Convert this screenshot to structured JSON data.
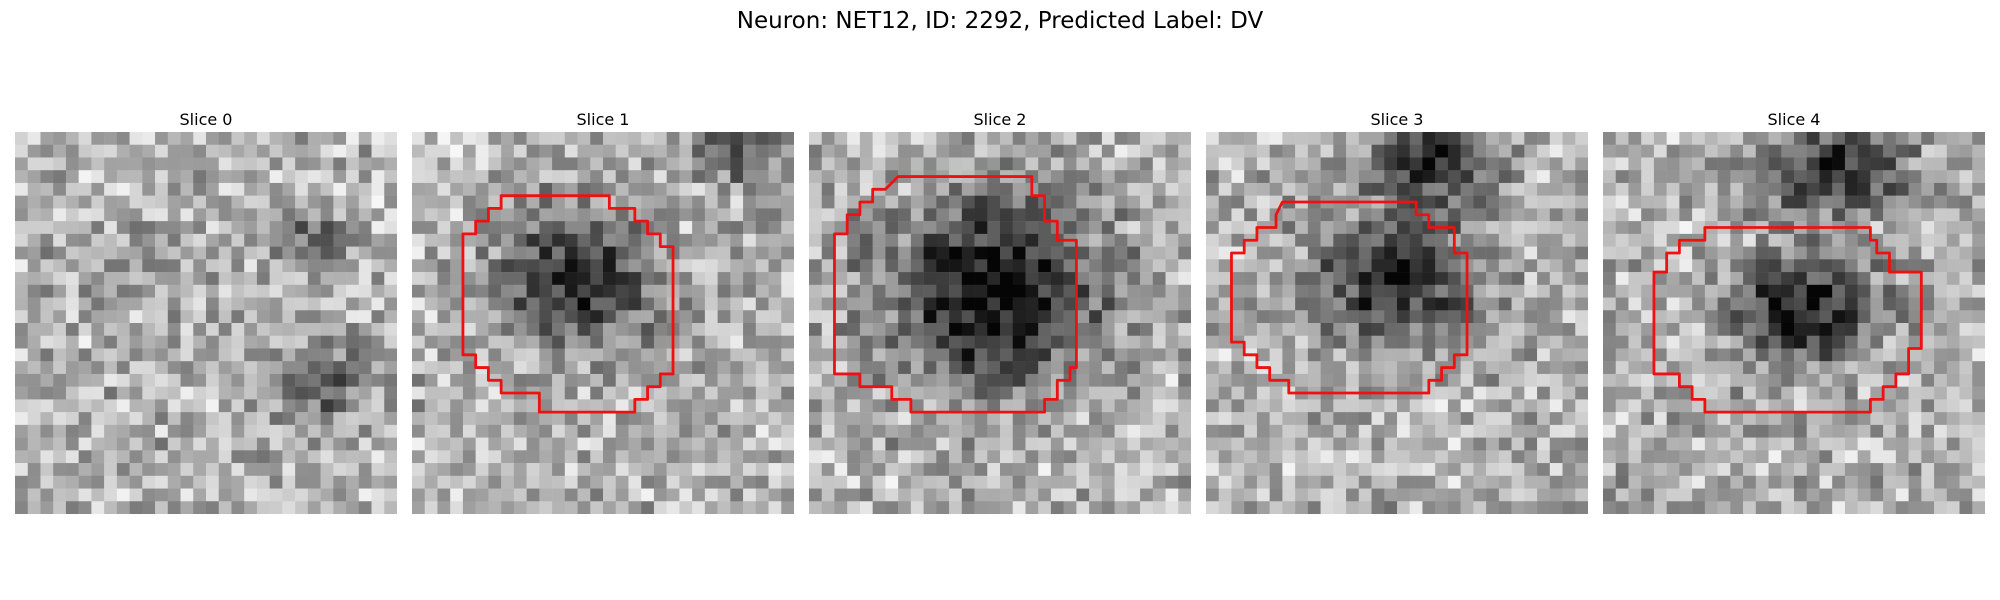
{
  "figure": {
    "title": "Neuron: NET12, ID: 2292, Predicted Label: DV"
  },
  "contour_color": "#ee1111",
  "panels": [
    {
      "title": "Slice 0",
      "image": "noisy grayscale patch, no cell body, no contour",
      "has_contour": false,
      "dark_regions": [
        [
          0.78,
          0.28,
          0.12,
          0.08,
          0.3
        ],
        [
          0.8,
          0.65,
          0.16,
          0.12,
          0.35
        ],
        [
          0.35,
          0.35,
          0.18,
          0.12,
          0.12
        ]
      ]
    },
    {
      "title": "Slice 1",
      "image": "grayscale patch with dark round cell body and red contour",
      "has_contour": true,
      "dark_regions": [
        [
          0.43,
          0.38,
          0.24,
          0.22,
          0.55
        ],
        [
          0.85,
          0.06,
          0.16,
          0.1,
          0.4
        ]
      ]
    },
    {
      "title": "Slice 2",
      "image": "grayscale patch with large dark cell body and red contour",
      "has_contour": true,
      "dark_regions": [
        [
          0.48,
          0.42,
          0.33,
          0.3,
          0.7
        ]
      ]
    },
    {
      "title": "Slice 3",
      "image": "grayscale patch with dark cell body and red contour",
      "has_contour": true,
      "dark_regions": [
        [
          0.5,
          0.38,
          0.26,
          0.22,
          0.6
        ],
        [
          0.6,
          0.08,
          0.2,
          0.12,
          0.55
        ]
      ]
    },
    {
      "title": "Slice 4",
      "image": "grayscale patch with dark cell body below a dark top structure and red contour",
      "has_contour": true,
      "dark_regions": [
        [
          0.53,
          0.47,
          0.24,
          0.18,
          0.6
        ],
        [
          0.6,
          0.1,
          0.26,
          0.14,
          0.55
        ]
      ]
    }
  ]
}
